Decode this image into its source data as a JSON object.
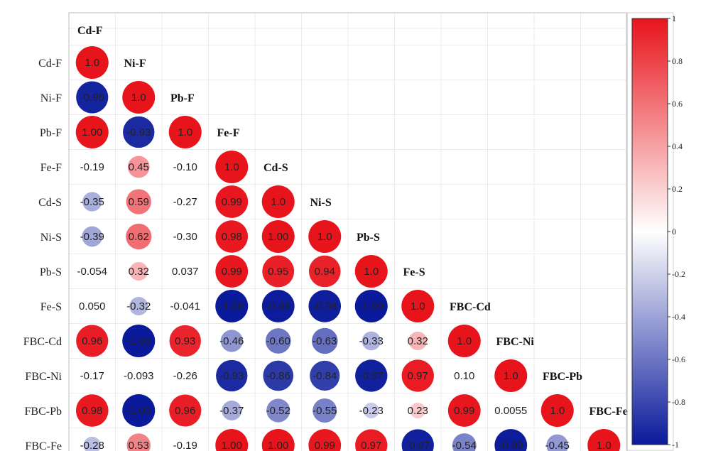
{
  "chart_data": {
    "type": "heatmap",
    "variables": [
      "Cd-F",
      "Ni-F",
      "Pb-F",
      "Fe-F",
      "Cd-S",
      "Ni-S",
      "Pb-S",
      "Fe-S",
      "FBC-Cd",
      "FBC-Ni",
      "FBC-Pb",
      "FBC-Fe"
    ],
    "row_labels": [
      "Cd-F",
      "Ni-F",
      "Pb-F",
      "Fe-F",
      "Cd-S",
      "Ni-S",
      "Pb-S",
      "Fe-S",
      "FBC-Cd",
      "FBC-Ni",
      "FBC-Pb",
      "FBC-Fe"
    ],
    "column_labels": [
      "Cd-F",
      "Ni-F",
      "Pb-F",
      "Fe-F",
      "Cd-S",
      "Ni-S",
      "Pb-S",
      "Fe-S",
      "FBC-Cd",
      "FBC-Ni",
      "FBC-Pb",
      "FBC-Fe"
    ],
    "cells": [
      [
        {
          "v": 1.0,
          "t": "1.0",
          "s": "circle"
        }
      ],
      [
        {
          "v": -0.96,
          "t": "-0.96",
          "s": "circle"
        },
        {
          "v": 1.0,
          "t": "1.0",
          "s": "circle"
        }
      ],
      [
        {
          "v": 1.0,
          "t": "1.00",
          "s": "circle"
        },
        {
          "v": -0.93,
          "t": "-0.93",
          "s": "circle"
        },
        {
          "v": 1.0,
          "t": "1.0",
          "s": "circle"
        }
      ],
      [
        {
          "v": -0.19,
          "t": "-0.19",
          "s": "text"
        },
        {
          "v": 0.45,
          "t": "0.45",
          "s": "circle"
        },
        {
          "v": -0.1,
          "t": "-0.10",
          "s": "text"
        },
        {
          "v": 1.0,
          "t": "1.0",
          "s": "circle"
        }
      ],
      [
        {
          "v": -0.35,
          "t": "-0.35",
          "s": "circle"
        },
        {
          "v": 0.59,
          "t": "0.59",
          "s": "circle"
        },
        {
          "v": -0.27,
          "t": "-0.27",
          "s": "text"
        },
        {
          "v": 0.99,
          "t": "0.99",
          "s": "circle"
        },
        {
          "v": 1.0,
          "t": "1.0",
          "s": "circle"
        }
      ],
      [
        {
          "v": -0.39,
          "t": "-0.39",
          "s": "circle"
        },
        {
          "v": 0.62,
          "t": "0.62",
          "s": "circle"
        },
        {
          "v": -0.3,
          "t": "-0.30",
          "s": "text"
        },
        {
          "v": 0.98,
          "t": "0.98",
          "s": "circle"
        },
        {
          "v": 1.0,
          "t": "1.00",
          "s": "circle"
        },
        {
          "v": 1.0,
          "t": "1.0",
          "s": "circle"
        }
      ],
      [
        {
          "v": -0.054,
          "t": "-0.054",
          "s": "text"
        },
        {
          "v": 0.32,
          "t": "0.32",
          "s": "circle"
        },
        {
          "v": 0.037,
          "t": "0.037",
          "s": "text"
        },
        {
          "v": 0.99,
          "t": "0.99",
          "s": "circle"
        },
        {
          "v": 0.95,
          "t": "0.95",
          "s": "circle"
        },
        {
          "v": 0.94,
          "t": "0.94",
          "s": "circle"
        },
        {
          "v": 1.0,
          "t": "1.0",
          "s": "circle"
        }
      ],
      [
        {
          "v": 0.05,
          "t": "0.050",
          "s": "text"
        },
        {
          "v": -0.32,
          "t": "-0.32",
          "s": "circle"
        },
        {
          "v": -0.041,
          "t": "-0.041",
          "s": "text"
        },
        {
          "v": -1.0,
          "t": "-1.00",
          "s": "circle"
        },
        {
          "v": -0.99,
          "t": "-0.99",
          "s": "circle"
        },
        {
          "v": -0.98,
          "t": "-0.98",
          "s": "circle"
        },
        {
          "v": -1.0,
          "t": "-1.00",
          "s": "circle"
        },
        {
          "v": 1.0,
          "t": "1.0",
          "s": "circle"
        }
      ],
      [
        {
          "v": 0.96,
          "t": "0.96",
          "s": "circle"
        },
        {
          "v": -1.0,
          "t": "-1.00",
          "s": "circle"
        },
        {
          "v": 0.93,
          "t": "0.93",
          "s": "circle"
        },
        {
          "v": -0.46,
          "t": "-0.46",
          "s": "circle"
        },
        {
          "v": -0.6,
          "t": "-0.60",
          "s": "circle"
        },
        {
          "v": -0.63,
          "t": "-0.63",
          "s": "circle"
        },
        {
          "v": -0.33,
          "t": "-0.33",
          "s": "circle"
        },
        {
          "v": 0.32,
          "t": "0.32",
          "s": "circle"
        },
        {
          "v": 1.0,
          "t": "1.0",
          "s": "circle"
        }
      ],
      [
        {
          "v": -0.17,
          "t": "-0.17",
          "s": "text"
        },
        {
          "v": -0.093,
          "t": "-0.093",
          "s": "text"
        },
        {
          "v": -0.26,
          "t": "-0.26",
          "s": "text"
        },
        {
          "v": -0.93,
          "t": "-0.93",
          "s": "circle"
        },
        {
          "v": -0.86,
          "t": "-0.86",
          "s": "circle"
        },
        {
          "v": -0.84,
          "t": "-0.84",
          "s": "circle"
        },
        {
          "v": -0.97,
          "t": "-0.97",
          "s": "circle"
        },
        {
          "v": 0.97,
          "t": "0.97",
          "s": "circle"
        },
        {
          "v": 0.1,
          "t": "0.10",
          "s": "text"
        },
        {
          "v": 1.0,
          "t": "1.0",
          "s": "circle"
        }
      ],
      [
        {
          "v": 0.98,
          "t": "0.98",
          "s": "circle"
        },
        {
          "v": -1.0,
          "t": "-1.00",
          "s": "circle"
        },
        {
          "v": 0.96,
          "t": "0.96",
          "s": "circle"
        },
        {
          "v": -0.37,
          "t": "-0.37",
          "s": "circle"
        },
        {
          "v": -0.52,
          "t": "-0.52",
          "s": "circle"
        },
        {
          "v": -0.55,
          "t": "-0.55",
          "s": "circle"
        },
        {
          "v": -0.23,
          "t": "-0.23",
          "s": "circle"
        },
        {
          "v": 0.23,
          "t": "0.23",
          "s": "circle"
        },
        {
          "v": 0.99,
          "t": "0.99",
          "s": "circle"
        },
        {
          "v": 0.0055,
          "t": "0.0055",
          "s": "text"
        },
        {
          "v": 1.0,
          "t": "1.0",
          "s": "circle"
        }
      ],
      [
        {
          "v": -0.28,
          "t": "-0.28",
          "s": "circle"
        },
        {
          "v": 0.53,
          "t": "0.53",
          "s": "circle"
        },
        {
          "v": -0.19,
          "t": "-0.19",
          "s": "text"
        },
        {
          "v": 1.0,
          "t": "1.00",
          "s": "circle"
        },
        {
          "v": 1.0,
          "t": "1.00",
          "s": "circle"
        },
        {
          "v": 0.99,
          "t": "0.99",
          "s": "circle"
        },
        {
          "v": 0.97,
          "t": "0.97",
          "s": "circle"
        },
        {
          "v": -0.97,
          "t": "-0.97",
          "s": "circle"
        },
        {
          "v": -0.54,
          "t": "-0.54",
          "s": "circle"
        },
        {
          "v": -0.99,
          "t": "-0.99",
          "s": "circle"
        },
        {
          "v": -0.45,
          "t": "-0.45",
          "s": "circle"
        },
        {
          "v": 1.0,
          "t": "1.0",
          "s": "circle"
        }
      ]
    ],
    "colorbar": {
      "ticks": [
        "1",
        "0.8",
        "0.6",
        "0.4",
        "0.2",
        "0",
        "-0.2",
        "-0.4",
        "-0.6",
        "-0.8",
        "-1"
      ],
      "range": [
        -1,
        1
      ],
      "colors": {
        "negative": "#0a1a9a",
        "zero": "#ffffff",
        "positive": "#e8141c"
      }
    },
    "grid": true,
    "title": "",
    "xlabel": "",
    "ylabel": ""
  }
}
